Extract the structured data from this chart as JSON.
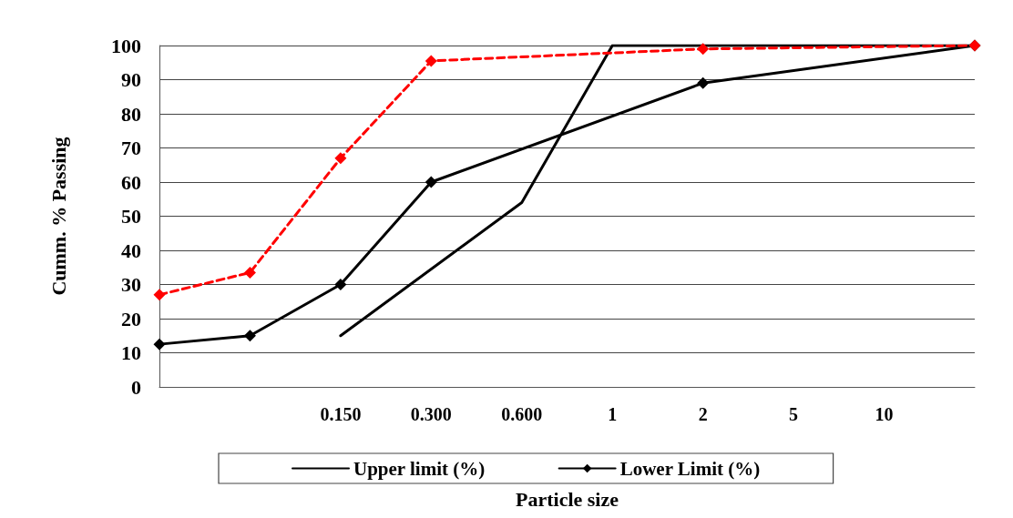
{
  "chart_data": {
    "type": "line",
    "xlabel": "Particle size",
    "ylabel": "Cumm. % Passing",
    "categories": [
      null,
      null,
      "0.150",
      "0.300",
      "0.600",
      "1",
      "2",
      "5",
      "10",
      null
    ],
    "series": [
      {
        "name": "Upper limit (%)",
        "color": "#000000",
        "marker": "none",
        "line_style": "solid",
        "values": [
          null,
          null,
          15,
          null,
          54,
          100,
          null,
          null,
          null,
          100
        ]
      },
      {
        "name": "Lower Limit (%)",
        "color": "#000000",
        "marker": "diamond",
        "line_style": "solid",
        "values": [
          12.5,
          15,
          30,
          60,
          null,
          null,
          89,
          null,
          null,
          100
        ]
      },
      {
        "color": "#ff0000",
        "marker": "diamond",
        "line_style": "dashed",
        "values": [
          27,
          33.5,
          67,
          95.5,
          null,
          null,
          99,
          null,
          null,
          100
        ]
      }
    ],
    "ylim": [
      0,
      100
    ],
    "yticks": [
      0,
      10,
      20,
      30,
      40,
      50,
      60,
      70,
      80,
      90,
      100
    ],
    "grid": "y",
    "legend": "bottom"
  }
}
